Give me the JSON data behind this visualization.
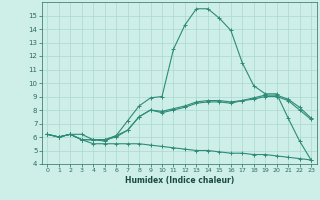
{
  "xlabel": "Humidex (Indice chaleur)",
  "x_values": [
    0,
    1,
    2,
    3,
    4,
    5,
    6,
    7,
    8,
    9,
    10,
    11,
    12,
    13,
    14,
    15,
    16,
    17,
    18,
    19,
    20,
    21,
    22,
    23
  ],
  "line1": [
    6.2,
    6.0,
    6.2,
    5.8,
    5.8,
    5.8,
    6.1,
    7.2,
    8.3,
    8.9,
    9.0,
    12.5,
    14.3,
    15.5,
    15.5,
    14.8,
    13.9,
    11.5,
    9.8,
    9.2,
    9.2,
    7.4,
    5.7,
    4.3
  ],
  "line2": [
    6.2,
    6.0,
    6.2,
    5.8,
    5.8,
    5.7,
    6.1,
    6.5,
    7.5,
    8.0,
    7.8,
    8.0,
    8.2,
    8.5,
    8.6,
    8.6,
    8.5,
    8.7,
    8.8,
    9.0,
    9.0,
    8.7,
    8.0,
    7.3
  ],
  "line3": [
    6.2,
    6.0,
    6.2,
    6.2,
    5.8,
    5.8,
    6.0,
    6.5,
    7.5,
    8.0,
    7.9,
    8.1,
    8.3,
    8.6,
    8.7,
    8.7,
    8.6,
    8.7,
    8.9,
    9.1,
    9.1,
    8.8,
    8.2,
    7.4
  ],
  "line4": [
    6.2,
    6.0,
    6.2,
    5.8,
    5.5,
    5.5,
    5.5,
    5.5,
    5.5,
    5.4,
    5.3,
    5.2,
    5.1,
    5.0,
    5.0,
    4.9,
    4.8,
    4.8,
    4.7,
    4.7,
    4.6,
    4.5,
    4.4,
    4.3
  ],
  "line_color": "#2e8b78",
  "bg_color": "#ceeee8",
  "grid_color": "#aad8d0",
  "ylim": [
    4,
    16
  ],
  "xlim_min": -0.5,
  "xlim_max": 23.5,
  "yticks": [
    4,
    5,
    6,
    7,
    8,
    9,
    10,
    11,
    12,
    13,
    14,
    15
  ],
  "xticks": [
    0,
    1,
    2,
    3,
    4,
    5,
    6,
    7,
    8,
    9,
    10,
    11,
    12,
    13,
    14,
    15,
    16,
    17,
    18,
    19,
    20,
    21,
    22,
    23
  ]
}
